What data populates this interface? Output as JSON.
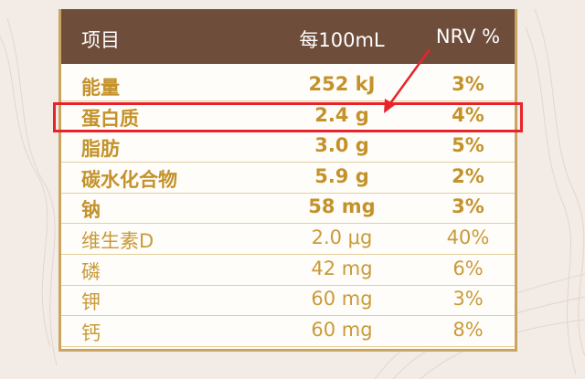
{
  "header": {
    "item": "项目",
    "per": "每100mL",
    "nrv": "NRV %"
  },
  "table": {
    "rows": [
      [
        "能量",
        "252 kJ",
        "3%"
      ],
      [
        "蛋白质",
        "2.4 g",
        "4%"
      ],
      [
        "脂肪",
        "3.0 g",
        "5%"
      ],
      [
        "碳水化合物",
        "5.9 g",
        "2%"
      ],
      [
        "钠",
        "58 mg",
        "3%"
      ],
      [
        "维生素D",
        "2.0 μg",
        "40%"
      ],
      [
        "磷",
        "42 mg",
        "6%"
      ],
      [
        "钾",
        "60 mg",
        "3%"
      ],
      [
        "钙",
        "60 mg",
        "8%"
      ]
    ]
  }
}
